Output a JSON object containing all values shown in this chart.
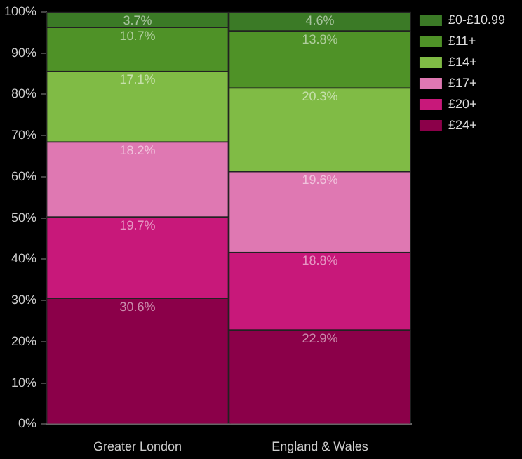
{
  "chart_data": {
    "type": "bar",
    "stacked": true,
    "categories": [
      "Greater London",
      "England & Wales"
    ],
    "series": [
      {
        "name": "£24+",
        "color": "#8b0049",
        "values": [
          30.6,
          22.9
        ],
        "value_labels": [
          "30.6%",
          "22.9%"
        ]
      },
      {
        "name": "£20+",
        "color": "#c8187a",
        "values": [
          19.7,
          18.8
        ],
        "value_labels": [
          "19.7%",
          "18.8%"
        ]
      },
      {
        "name": "£17+",
        "color": "#df78b2",
        "values": [
          18.2,
          19.6
        ],
        "value_labels": [
          "18.2%",
          "19.6%"
        ]
      },
      {
        "name": "£14+",
        "color": "#80bb45",
        "values": [
          17.1,
          20.3
        ],
        "value_labels": [
          "17.1%",
          "20.3%"
        ]
      },
      {
        "name": "£11+",
        "color": "#4f9227",
        "values": [
          10.7,
          13.8
        ],
        "value_labels": [
          "10.7%",
          "13.8%"
        ]
      },
      {
        "name": "£0-£10.99",
        "color": "#3b7a26",
        "values": [
          3.7,
          4.6
        ],
        "value_labels": [
          "3.7%",
          "4.6%"
        ]
      }
    ],
    "ylim": [
      0,
      100
    ],
    "yticks": [
      {
        "value": 0,
        "label": "0%"
      },
      {
        "value": 10,
        "label": "10%"
      },
      {
        "value": 20,
        "label": "20%"
      },
      {
        "value": 30,
        "label": "30%"
      },
      {
        "value": 40,
        "label": "40%"
      },
      {
        "value": 50,
        "label": "50%"
      },
      {
        "value": 60,
        "label": "60%"
      },
      {
        "value": 70,
        "label": "70%"
      },
      {
        "value": 80,
        "label": "80%"
      },
      {
        "value": 90,
        "label": "90%"
      },
      {
        "value": 100,
        "label": "100%"
      }
    ],
    "grid": false,
    "legend": "top right"
  }
}
